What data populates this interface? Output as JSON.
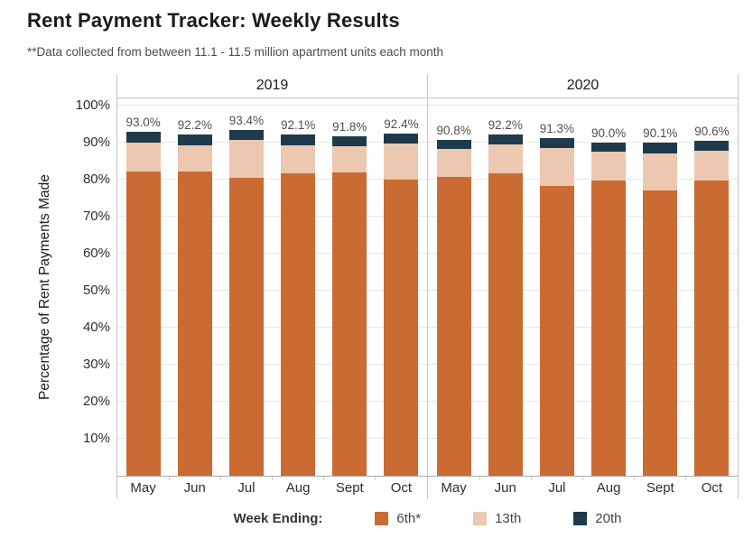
{
  "title": "Rent Payment Tracker: Weekly Results",
  "subtitle": "**Data collected from between 11.1 - 11.5 million apartment units each month",
  "legend": {
    "title": "Week Ending:",
    "items": [
      {
        "label": "6th*",
        "color": "#C96B33"
      },
      {
        "label": "13th",
        "color": "#EBC8AF"
      },
      {
        "label": "20th",
        "color": "#1F3A4A"
      }
    ]
  },
  "chart_data": {
    "type": "bar",
    "stacked": true,
    "title": "Rent Payment Tracker: Weekly Results",
    "ylabel": "Percentage of Rent Payments Made",
    "xlabel": "",
    "ylim": [
      0,
      102
    ],
    "ytick_step": 10,
    "ytick_suffix": "%",
    "grid": true,
    "legend_position": "bottom",
    "groups": [
      {
        "year": "2019",
        "categories": [
          "May",
          "Jun",
          "Jul",
          "Aug",
          "Sept",
          "Oct"
        ]
      },
      {
        "year": "2020",
        "categories": [
          "May",
          "Jun",
          "Jul",
          "Aug",
          "Sept",
          "Oct"
        ]
      }
    ],
    "series": [
      {
        "name": "6th*",
        "color": "#C96B33",
        "values": [
          [
            82.2,
            82.1,
            80.5,
            81.7,
            81.9,
            80.0
          ],
          [
            80.8,
            81.6,
            78.2,
            79.8,
            77.1,
            79.8
          ]
        ]
      },
      {
        "name": "13th",
        "color": "#EBC8AF",
        "values": [
          [
            7.8,
            7.2,
            10.3,
            7.6,
            7.2,
            9.8
          ],
          [
            7.4,
            8.0,
            10.4,
            7.8,
            10.1,
            8.0
          ]
        ]
      },
      {
        "name": "20th",
        "color": "#1F3A4A",
        "values": [
          [
            3.0,
            2.9,
            2.6,
            2.8,
            2.7,
            2.6
          ],
          [
            2.6,
            2.6,
            2.7,
            2.4,
            2.9,
            2.8
          ]
        ]
      }
    ],
    "totals": [
      [
        "93.0%",
        "92.2%",
        "93.4%",
        "92.1%",
        "91.8%",
        "92.4%"
      ],
      [
        "90.8%",
        "92.2%",
        "91.3%",
        "90.0%",
        "90.1%",
        "90.6%"
      ]
    ]
  }
}
